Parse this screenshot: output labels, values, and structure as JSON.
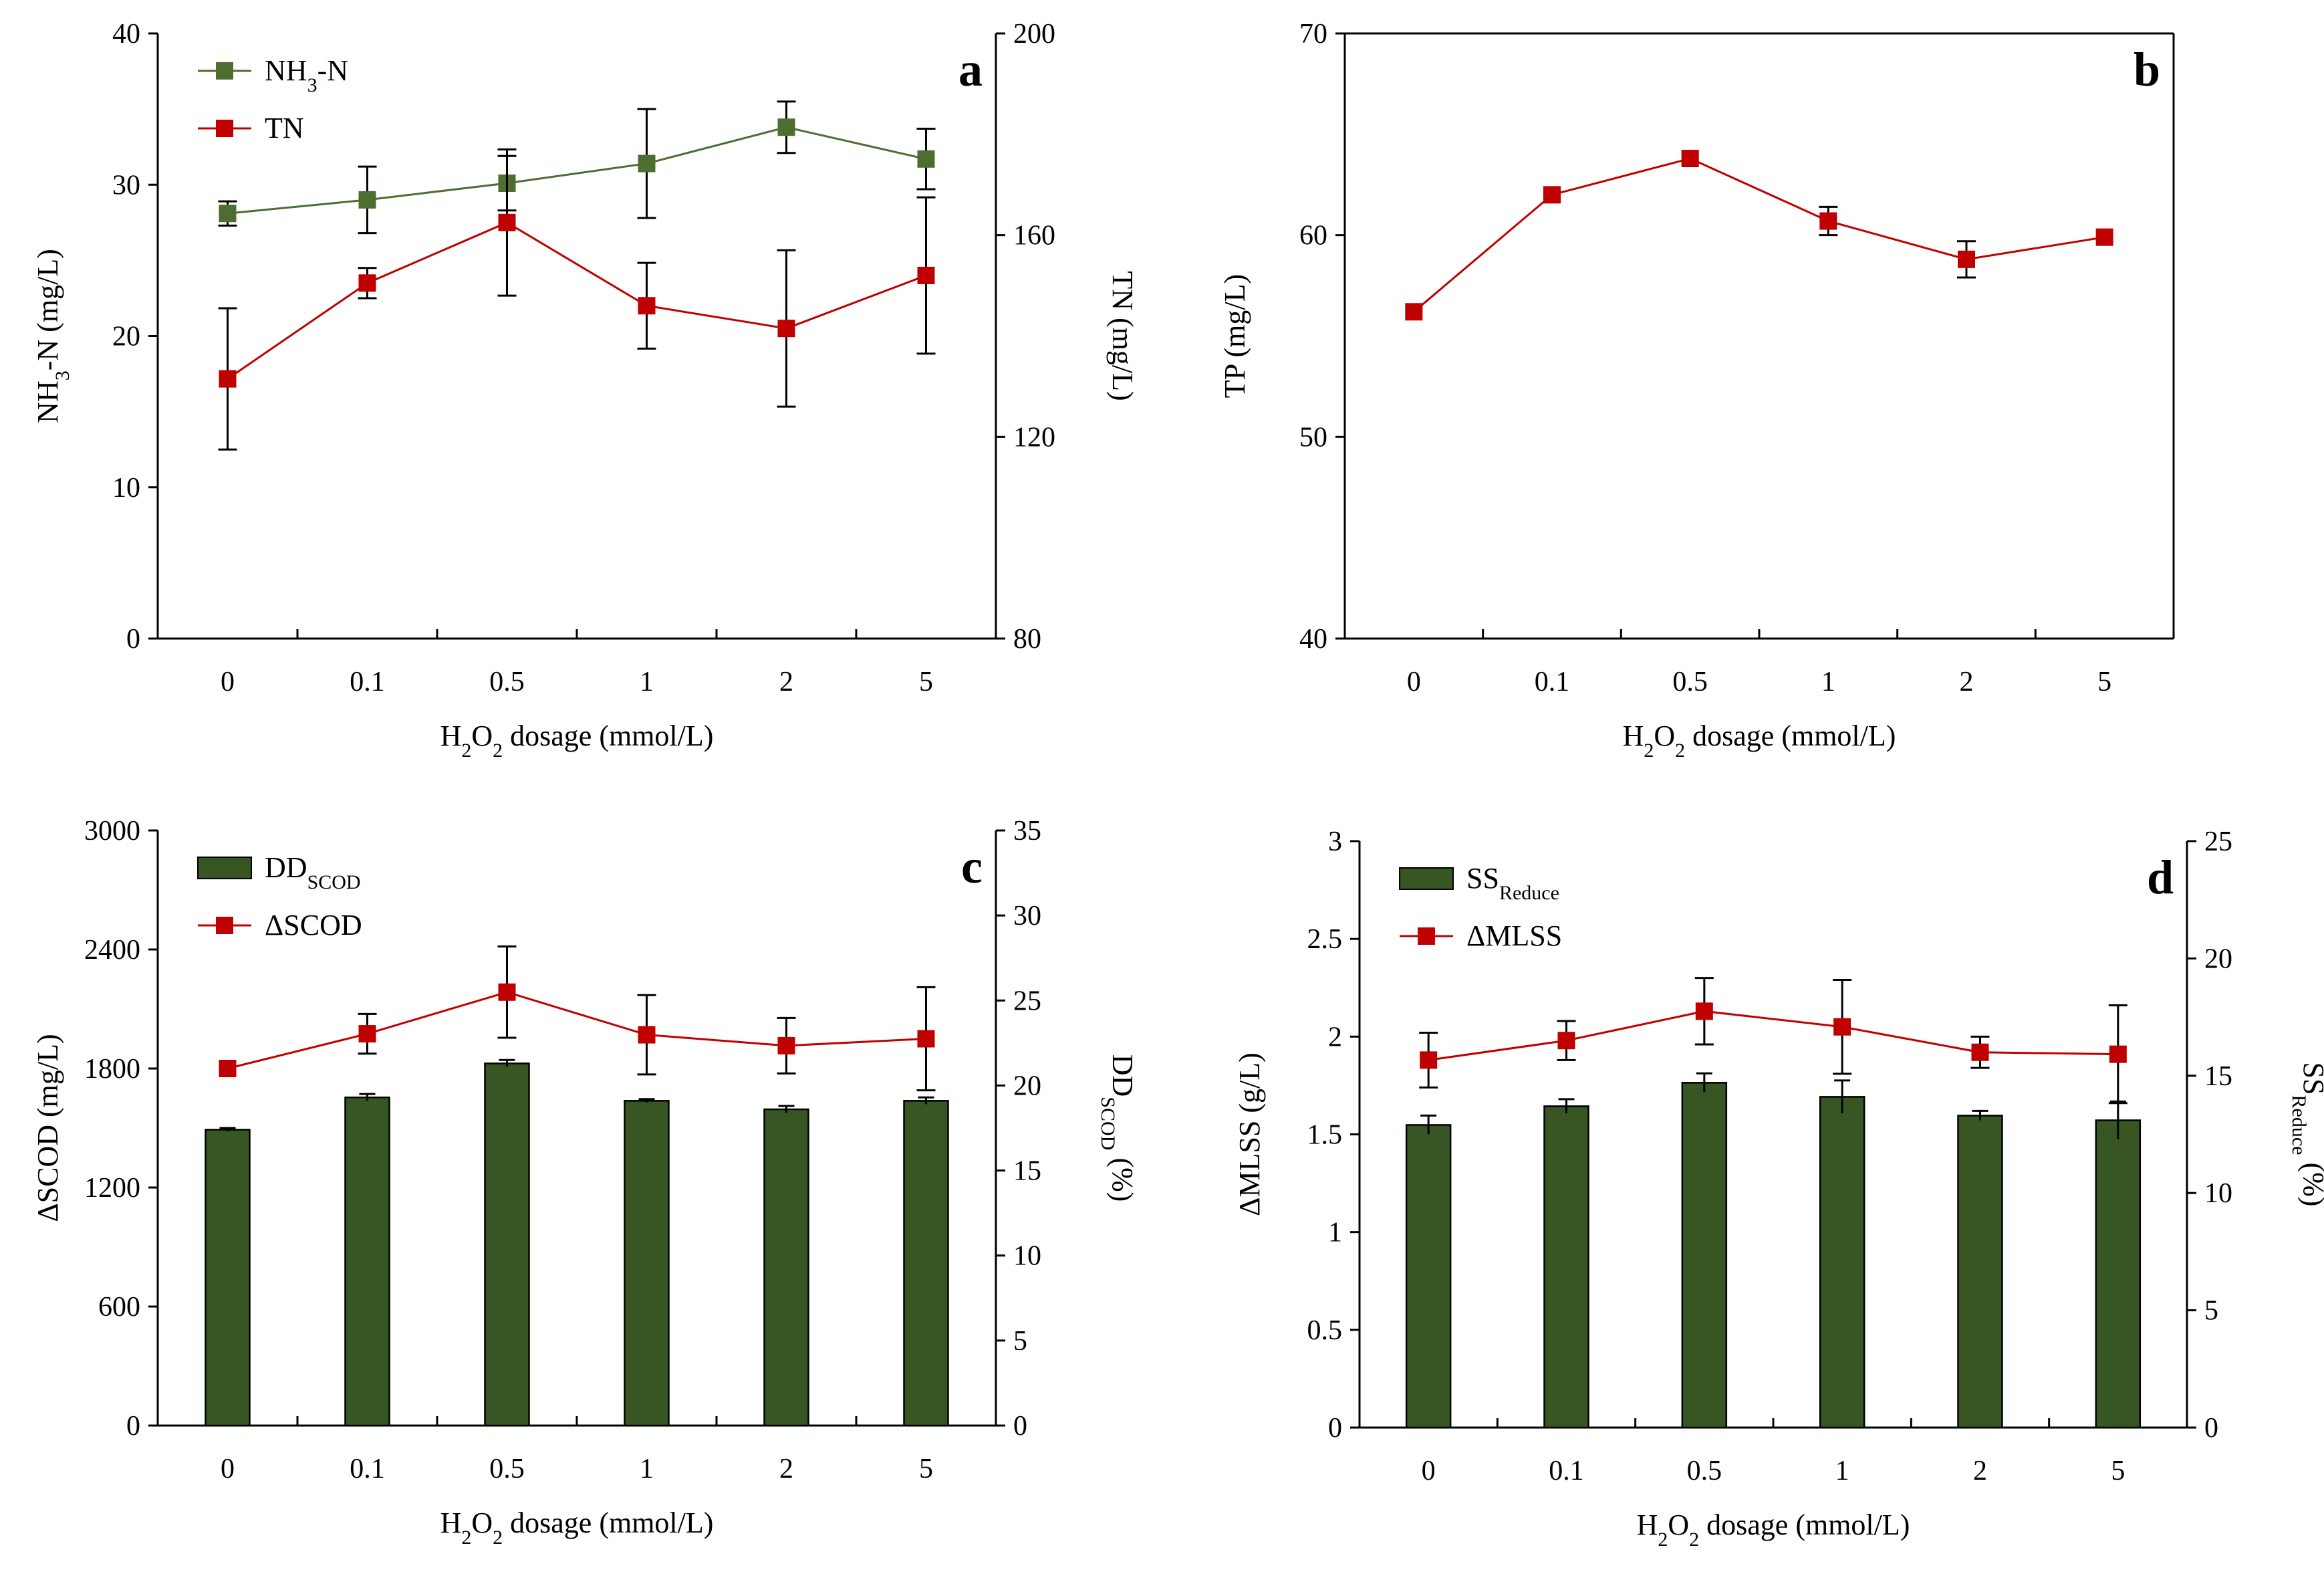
{
  "chart_data": [
    {
      "panel": "a",
      "type": "line",
      "panel_label": "a",
      "xlabel": {
        "pre": "H",
        "s1": "2",
        "mid": "O",
        "s2": "2",
        "post": " dosage (mmol/L)"
      },
      "categories": [
        "0",
        "0.1",
        "0.5",
        "1",
        "2",
        "5"
      ],
      "y_left": {
        "label": {
          "a": "NH",
          "sub": "3",
          "b": "-N  (mg/L)"
        },
        "ylim": [
          0,
          40
        ],
        "ticks": [
          "0",
          "10",
          "20",
          "30",
          "40"
        ]
      },
      "y_right": {
        "label": "TN  (mg/L)",
        "ylim": [
          80,
          200
        ],
        "ticks": [
          "80",
          "120",
          "160",
          "200"
        ]
      },
      "series": [
        {
          "name": {
            "a": "NH",
            "sub": "3",
            "b": "-N"
          },
          "axis": "left",
          "color": "#4d6e30",
          "values": [
            28.1,
            29.0,
            30.1,
            31.4,
            33.8,
            31.7
          ],
          "errors": [
            0.8,
            2.2,
            1.8,
            3.6,
            1.7,
            2.0
          ]
        },
        {
          "name": {
            "a": "TN",
            "sub": "",
            "b": ""
          },
          "axis": "right",
          "color": "#c00000",
          "values": [
            131.5,
            150.5,
            162.5,
            146.0,
            141.5,
            152.0
          ],
          "errors": [
            14.0,
            3.0,
            14.5,
            8.5,
            15.5,
            15.5
          ]
        }
      ]
    },
    {
      "panel": "b",
      "type": "line",
      "panel_label": "b",
      "xlabel": {
        "pre": "H",
        "s1": "2",
        "mid": "O",
        "s2": "2",
        "post": " dosage (mmol/L)"
      },
      "categories": [
        "0",
        "0.1",
        "0.5",
        "1",
        "2",
        "5"
      ],
      "y_left": {
        "label": {
          "a": "TP  (mg/L)",
          "sub": "",
          "b": ""
        },
        "ylim": [
          40,
          70
        ],
        "ticks": [
          "40",
          "50",
          "60",
          "70"
        ]
      },
      "series": [
        {
          "name": {
            "a": "TP",
            "sub": "",
            "b": ""
          },
          "axis": "left",
          "color": "#c00000",
          "values": [
            56.2,
            62.0,
            63.8,
            60.7,
            58.8,
            59.9
          ],
          "errors": [
            0,
            0,
            0,
            0.7,
            0.9,
            0
          ]
        }
      ]
    },
    {
      "panel": "c",
      "type": "bar+line",
      "panel_label": "c",
      "xlabel": {
        "pre": "H",
        "s1": "2",
        "mid": "O",
        "s2": "2",
        "post": " dosage (mmol/L)"
      },
      "categories": [
        "0",
        "0.1",
        "0.5",
        "1",
        "2",
        "5"
      ],
      "y_left": {
        "label": {
          "a": "ΔSCOD  (mg/L)",
          "sub": "",
          "b": ""
        },
        "ylim": [
          0,
          3000
        ],
        "ticks": [
          "0",
          "600",
          "1200",
          "1800",
          "2400",
          "3000"
        ]
      },
      "y_right": {
        "label": {
          "a": "DD",
          "sub": "SCOD",
          "b": " (%)"
        },
        "ylim": [
          0,
          35
        ],
        "ticks": [
          "0",
          "5",
          "10",
          "15",
          "20",
          "25",
          "30",
          "35"
        ]
      },
      "series": [
        {
          "name": {
            "a": "DD",
            "sub": "SCOD",
            "b": ""
          },
          "kind": "bar",
          "axis": "right",
          "color": "#375623",
          "values": [
            17.4,
            19.3,
            21.3,
            19.1,
            18.6,
            19.1
          ],
          "errors": [
            0.1,
            0.2,
            0.2,
            0.1,
            0.2,
            0.2
          ]
        },
        {
          "name": {
            "a": "ΔSCOD",
            "sub": "",
            "b": ""
          },
          "kind": "line",
          "axis": "left",
          "color": "#c00000",
          "values": [
            1800,
            1975,
            2185,
            1970,
            1915,
            1950
          ],
          "errors": [
            0,
            100,
            230,
            200,
            140,
            260
          ]
        }
      ]
    },
    {
      "panel": "d",
      "type": "bar+line",
      "panel_label": "d",
      "xlabel": {
        "pre": "H",
        "s1": "2",
        "mid": "O",
        "s2": "2",
        "post": " dosage (mmol/L)"
      },
      "categories": [
        "0",
        "0.1",
        "0.5",
        "1",
        "2",
        "5"
      ],
      "y_left": {
        "label": {
          "a": "ΔMLSS  (g/L)",
          "sub": "",
          "b": ""
        },
        "ylim": [
          0,
          3
        ],
        "ticks": [
          "0",
          "0.5",
          "1",
          "1.5",
          "2",
          "2.5",
          "3"
        ]
      },
      "y_right": {
        "label": {
          "a": "SS",
          "sub": "Reduce",
          "b": " (%)"
        },
        "ylim": [
          0,
          25
        ],
        "ticks": [
          "0",
          "5",
          "10",
          "15",
          "20",
          "25"
        ]
      },
      "series": [
        {
          "name": {
            "a": "SS",
            "sub": "Reduce",
            "b": ""
          },
          "kind": "bar",
          "axis": "right",
          "color": "#375623",
          "values": [
            12.9,
            13.7,
            14.7,
            14.1,
            13.3,
            13.1
          ],
          "errors": [
            0.4,
            0.3,
            0.4,
            0.7,
            0.2,
            0.8
          ]
        },
        {
          "name": {
            "a": "ΔMLSS",
            "sub": "",
            "b": ""
          },
          "kind": "line",
          "axis": "left",
          "color": "#c00000",
          "values": [
            1.88,
            1.98,
            2.13,
            2.05,
            1.92,
            1.91
          ],
          "errors": [
            0.14,
            0.1,
            0.17,
            0.24,
            0.08,
            0.25
          ]
        }
      ]
    }
  ]
}
